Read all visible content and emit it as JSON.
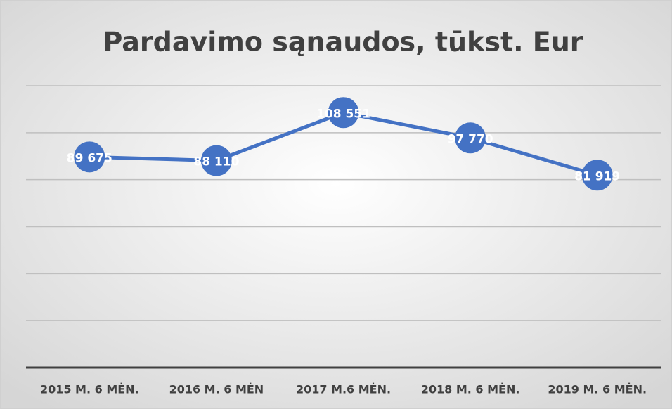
{
  "chart_data": {
    "type": "line",
    "title": "Pardavimo sąnaudos, tūkst. Eur",
    "categories": [
      "2015 M. 6 MĖN.",
      "2016 M. 6 MĖN",
      "2017 M.6 MĖN.",
      "2018 M. 6 MĖN.",
      "2019 M. 6 MĖN."
    ],
    "series": [
      {
        "name": "Pardavimo sąnaudos",
        "color": "#4472c4",
        "values": [
          89675,
          88110,
          108551,
          97770,
          81919
        ],
        "value_labels": [
          "89 675",
          "88 110",
          "108 551",
          "97 770",
          "81 919"
        ]
      }
    ],
    "ylim": [
      0,
      120000
    ],
    "yticks": [
      0,
      20000,
      40000,
      60000,
      80000,
      100000,
      120000
    ],
    "grid": true
  }
}
